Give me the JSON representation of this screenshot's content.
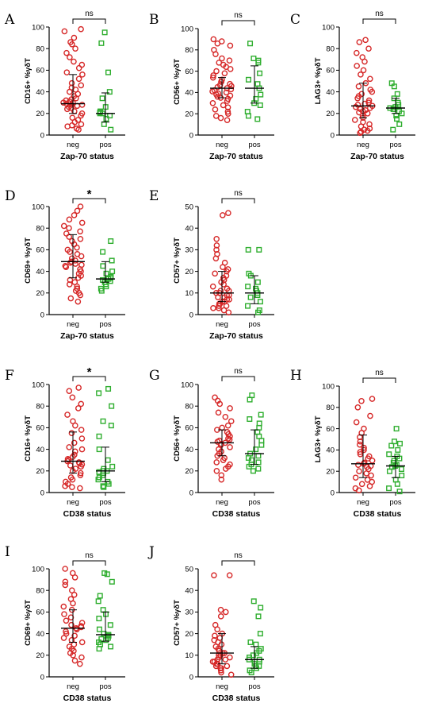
{
  "colors": {
    "neg": "#d62828",
    "pos": "#2fae2f",
    "axis": "#000000"
  },
  "marker_shapes": {
    "neg": "circle",
    "pos": "square"
  },
  "chart_data": [
    {
      "letter": "A",
      "type": "scatter",
      "ylabel": "CD16+ %γδT",
      "xlabel": "Zap-70 status",
      "categories": [
        "neg",
        "pos"
      ],
      "ylim": [
        0,
        100
      ],
      "yticks": [
        0,
        20,
        40,
        60,
        80,
        100
      ],
      "significance": "ns",
      "series": [
        {
          "values": [
            98,
            96,
            90,
            86,
            84,
            80,
            76,
            72,
            68,
            65,
            62,
            58,
            56,
            52,
            48,
            46,
            44,
            42,
            40,
            38,
            36,
            34,
            33,
            32,
            31,
            30,
            30,
            29,
            28,
            28,
            27,
            26,
            25,
            24,
            22,
            20,
            18,
            16,
            14,
            12,
            10,
            9,
            8,
            6,
            5
          ],
          "median": 29,
          "q1": 20,
          "q3": 56
        },
        {
          "values": [
            95,
            85,
            58,
            40,
            34,
            26,
            22,
            21,
            20,
            20,
            18,
            15,
            10,
            5
          ],
          "median": 20,
          "q1": 12,
          "q3": 39
        }
      ]
    },
    {
      "letter": "B",
      "type": "scatter",
      "ylabel": "CD56+ %γδT",
      "xlabel": "Zap-70 status",
      "categories": [
        "neg",
        "pos"
      ],
      "ylim": [
        0,
        100
      ],
      "yticks": [
        0,
        20,
        40,
        60,
        80,
        100
      ],
      "significance": "ns",
      "series": [
        {
          "values": [
            90,
            88,
            86,
            84,
            80,
            76,
            72,
            70,
            68,
            66,
            64,
            62,
            60,
            58,
            56,
            54,
            52,
            50,
            50,
            48,
            47,
            46,
            45,
            44,
            43,
            42,
            41,
            40,
            39,
            38,
            37,
            36,
            35,
            34,
            32,
            30,
            28,
            26,
            24,
            22,
            20,
            18,
            16,
            14
          ],
          "median": 44,
          "q1": 35,
          "q3": 54
        },
        {
          "values": [
            86,
            72,
            70,
            68,
            58,
            52,
            48,
            44,
            38,
            34,
            30,
            28,
            22,
            18,
            15
          ],
          "median": 44,
          "q1": 30,
          "q3": 65
        }
      ]
    },
    {
      "letter": "C",
      "type": "scatter",
      "ylabel": "LAG3+ %γδT",
      "xlabel": "Zap-70 status",
      "categories": [
        "neg",
        "pos"
      ],
      "ylim": [
        0,
        100
      ],
      "yticks": [
        0,
        20,
        40,
        60,
        80,
        100
      ],
      "significance": "ns",
      "series": [
        {
          "values": [
            88,
            86,
            80,
            76,
            72,
            68,
            64,
            60,
            56,
            52,
            48,
            45,
            42,
            40,
            38,
            36,
            34,
            32,
            30,
            29,
            28,
            27,
            26,
            25,
            24,
            23,
            22,
            21,
            20,
            18,
            16,
            14,
            12,
            10,
            8,
            6,
            5,
            4,
            3,
            2
          ],
          "median": 27,
          "q1": 16,
          "q3": 48
        },
        {
          "values": [
            48,
            45,
            38,
            34,
            30,
            28,
            26,
            25,
            24,
            24,
            22,
            20,
            18,
            15,
            10,
            5
          ],
          "median": 25,
          "q1": 20,
          "q3": 34
        }
      ]
    },
    {
      "letter": "D",
      "type": "scatter",
      "ylabel": "CD69+ %γδT",
      "xlabel": "Zap-70 status",
      "categories": [
        "neg",
        "pos"
      ],
      "ylim": [
        0,
        100
      ],
      "yticks": [
        0,
        20,
        40,
        60,
        80,
        100
      ],
      "significance": "*",
      "series": [
        {
          "values": [
            100,
            96,
            92,
            88,
            85,
            82,
            80,
            77,
            75,
            72,
            70,
            68,
            65,
            62,
            60,
            58,
            56,
            54,
            52,
            50,
            49,
            48,
            47,
            46,
            45,
            44,
            42,
            40,
            38,
            36,
            34,
            32,
            30,
            28,
            26,
            24,
            22,
            20,
            18,
            15,
            12
          ],
          "median": 49,
          "q1": 34,
          "q3": 74
        },
        {
          "values": [
            68,
            58,
            50,
            45,
            40,
            38,
            35,
            34,
            33,
            32,
            31,
            30,
            28,
            26,
            24,
            22
          ],
          "median": 33,
          "q1": 30,
          "q3": 49
        }
      ]
    },
    {
      "letter": "E",
      "type": "scatter",
      "ylabel": "CD57+ %γδT",
      "xlabel": "Zap-70 status",
      "categories": [
        "neg",
        "pos"
      ],
      "ylim": [
        0,
        50
      ],
      "yticks": [
        0,
        10,
        20,
        30,
        40,
        50
      ],
      "significance": "ns",
      "series": [
        {
          "values": [
            47,
            46,
            35,
            32,
            30,
            28,
            26,
            24,
            22,
            21,
            20,
            19,
            18,
            17,
            16,
            15,
            14,
            13,
            12,
            11,
            11,
            10,
            10,
            9,
            9,
            8,
            8,
            7,
            7,
            6,
            6,
            5,
            5,
            4,
            4,
            3,
            3,
            2,
            1
          ],
          "median": 10,
          "q1": 6,
          "q3": 20
        },
        {
          "values": [
            30,
            30,
            19,
            18,
            15,
            13,
            12,
            11,
            10,
            9,
            8,
            6,
            4,
            2,
            1
          ],
          "median": 10,
          "q1": 5,
          "q3": 18
        }
      ]
    },
    {
      "letter": "F",
      "type": "scatter",
      "ylabel": "CD16+ %γδT",
      "xlabel": "CD38 status",
      "categories": [
        "neg",
        "pos"
      ],
      "ylim": [
        0,
        100
      ],
      "yticks": [
        0,
        20,
        40,
        60,
        80,
        100
      ],
      "significance": "*",
      "series": [
        {
          "values": [
            97,
            94,
            88,
            82,
            78,
            72,
            66,
            62,
            58,
            55,
            50,
            46,
            42,
            40,
            38,
            35,
            33,
            31,
            30,
            29,
            28,
            27,
            26,
            25,
            24,
            22,
            20,
            18,
            16,
            14,
            12,
            10,
            8,
            6,
            5,
            4
          ],
          "median": 29,
          "q1": 18,
          "q3": 56
        },
        {
          "values": [
            96,
            92,
            80,
            66,
            62,
            52,
            40,
            30,
            24,
            22,
            20,
            20,
            19,
            18,
            16,
            14,
            12,
            10,
            8,
            6,
            5
          ],
          "median": 20,
          "q1": 10,
          "q3": 42
        }
      ]
    },
    {
      "letter": "G",
      "type": "scatter",
      "ylabel": "CD56+ %γδT",
      "xlabel": "CD38 status",
      "categories": [
        "neg",
        "pos"
      ],
      "ylim": [
        0,
        100
      ],
      "yticks": [
        0,
        20,
        40,
        60,
        80,
        100
      ],
      "significance": "ns",
      "series": [
        {
          "values": [
            88,
            85,
            82,
            78,
            74,
            70,
            66,
            62,
            60,
            58,
            56,
            54,
            52,
            50,
            49,
            48,
            47,
            46,
            45,
            44,
            42,
            40,
            38,
            36,
            34,
            32,
            30,
            28,
            26,
            24,
            22,
            20,
            16,
            12
          ],
          "median": 46,
          "q1": 34,
          "q3": 58
        },
        {
          "values": [
            90,
            86,
            72,
            68,
            64,
            60,
            56,
            52,
            48,
            44,
            40,
            36,
            34,
            32,
            30,
            28,
            26,
            24,
            22,
            20
          ],
          "median": 36,
          "q1": 26,
          "q3": 58
        }
      ]
    },
    {
      "letter": "H",
      "type": "scatter",
      "ylabel": "LAG3+ %γδT",
      "xlabel": "CD38 status",
      "categories": [
        "neg",
        "pos"
      ],
      "ylim": [
        0,
        100
      ],
      "yticks": [
        0,
        20,
        40,
        60,
        80,
        100
      ],
      "significance": "ns",
      "series": [
        {
          "values": [
            88,
            86,
            80,
            72,
            66,
            60,
            56,
            52,
            48,
            45,
            42,
            40,
            38,
            36,
            34,
            32,
            30,
            28,
            27,
            26,
            25,
            24,
            22,
            20,
            18,
            16,
            14,
            12,
            10,
            8,
            6,
            4,
            2
          ],
          "median": 27,
          "q1": 14,
          "q3": 54
        },
        {
          "values": [
            60,
            48,
            46,
            44,
            40,
            36,
            34,
            32,
            30,
            28,
            26,
            25,
            24,
            22,
            20,
            16,
            12,
            8,
            4,
            1
          ],
          "median": 25,
          "q1": 14,
          "q3": 34
        }
      ]
    },
    {
      "letter": "I",
      "type": "scatter",
      "ylabel": "CD69+ %γδT",
      "xlabel": "CD38 status",
      "categories": [
        "neg",
        "pos"
      ],
      "ylim": [
        0,
        100
      ],
      "yticks": [
        0,
        20,
        40,
        60,
        80,
        100
      ],
      "significance": "ns",
      "series": [
        {
          "values": [
            100,
            96,
            92,
            88,
            85,
            80,
            76,
            72,
            68,
            65,
            62,
            58,
            55,
            52,
            50,
            48,
            47,
            46,
            45,
            44,
            42,
            40,
            38,
            36,
            34,
            32,
            30,
            28,
            26,
            24,
            22,
            20,
            18,
            15,
            12
          ],
          "median": 45,
          "q1": 32,
          "q3": 62
        },
        {
          "values": [
            96,
            95,
            88,
            75,
            70,
            62,
            58,
            54,
            48,
            44,
            40,
            39,
            38,
            36,
            35,
            34,
            32,
            30,
            28,
            26
          ],
          "median": 39,
          "q1": 33,
          "q3": 60
        }
      ]
    },
    {
      "letter": "J",
      "type": "scatter",
      "ylabel": "CD57+ %γδT",
      "xlabel": "CD38 status",
      "categories": [
        "neg",
        "pos"
      ],
      "ylim": [
        0,
        50
      ],
      "yticks": [
        0,
        10,
        20,
        30,
        40,
        50
      ],
      "significance": "ns",
      "series": [
        {
          "values": [
            47,
            47,
            31,
            30,
            28,
            24,
            22,
            20,
            19,
            18,
            17,
            16,
            15,
            14,
            13,
            12,
            11,
            11,
            10,
            10,
            9,
            9,
            8,
            8,
            7,
            7,
            6,
            6,
            5,
            5,
            4,
            4,
            3,
            2,
            1
          ],
          "median": 11,
          "q1": 6,
          "q3": 20
        },
        {
          "values": [
            35,
            32,
            28,
            20,
            16,
            15,
            13,
            12,
            11,
            10,
            9,
            8,
            8,
            7,
            7,
            6,
            5,
            5,
            4,
            3,
            2
          ],
          "median": 8,
          "q1": 4,
          "q3": 14
        }
      ]
    }
  ]
}
